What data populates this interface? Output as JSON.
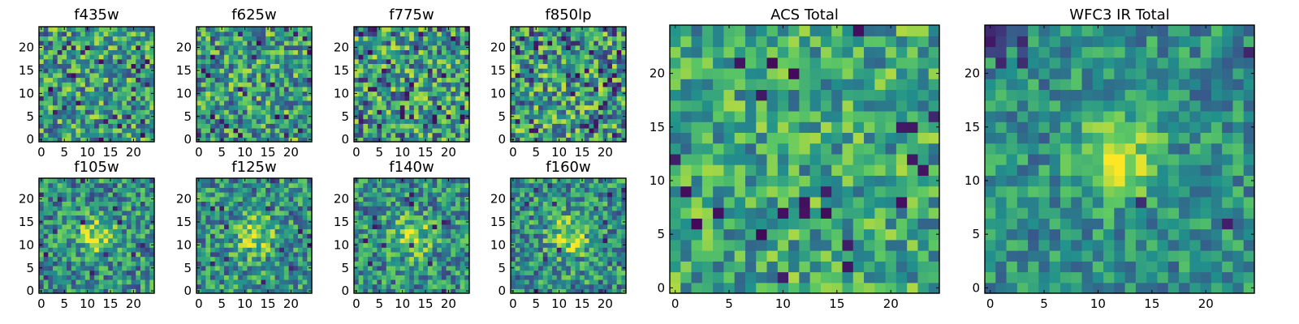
{
  "chart_data": [
    {
      "type": "heatmap",
      "title": "f435w",
      "xticks": [
        "0",
        "5",
        "10",
        "15",
        "20"
      ],
      "yticks": [
        "0",
        "5",
        "10",
        "15",
        "20"
      ],
      "xlim": [
        -0.5,
        24.5
      ],
      "ylim": [
        -0.5,
        24.5
      ],
      "grid_size": [
        25,
        25
      ],
      "colormap": "viridis",
      "pattern": "uniform noise, mostly green-yellow with scattered dark pixels"
    },
    {
      "type": "heatmap",
      "title": "f625w",
      "xticks": [
        "0",
        "5",
        "10",
        "15",
        "20"
      ],
      "yticks": [
        "0",
        "5",
        "10",
        "15",
        "20"
      ],
      "xlim": [
        -0.5,
        24.5
      ],
      "ylim": [
        -0.5,
        24.5
      ],
      "grid_size": [
        25,
        25
      ],
      "colormap": "viridis",
      "pattern": "uniform noise"
    },
    {
      "type": "heatmap",
      "title": "f775w",
      "xticks": [
        "0",
        "5",
        "10",
        "15",
        "20"
      ],
      "yticks": [
        "0",
        "5",
        "10",
        "15",
        "20"
      ],
      "xlim": [
        -0.5,
        24.5
      ],
      "ylim": [
        -0.5,
        24.5
      ],
      "grid_size": [
        25,
        25
      ],
      "colormap": "viridis",
      "pattern": "uniform noise with many dark pixels"
    },
    {
      "type": "heatmap",
      "title": "f850lp",
      "xticks": [
        "0",
        "5",
        "10",
        "15",
        "20"
      ],
      "yticks": [
        "0",
        "5",
        "10",
        "15",
        "20"
      ],
      "xlim": [
        -0.5,
        24.5
      ],
      "ylim": [
        -0.5,
        24.5
      ],
      "grid_size": [
        25,
        25
      ],
      "colormap": "viridis",
      "pattern": "uniform noise with many dark pixels"
    },
    {
      "type": "heatmap",
      "title": "f105w",
      "xticks": [
        "0",
        "5",
        "10",
        "15",
        "20"
      ],
      "yticks": [
        "0",
        "5",
        "10",
        "15",
        "20"
      ],
      "xlim": [
        -0.5,
        24.5
      ],
      "ylim": [
        -0.5,
        24.5
      ],
      "grid_size": [
        25,
        25
      ],
      "colormap": "viridis",
      "pattern": "noise with faint central bright source"
    },
    {
      "type": "heatmap",
      "title": "f125w",
      "xticks": [
        "0",
        "5",
        "10",
        "15",
        "20"
      ],
      "yticks": [
        "0",
        "5",
        "10",
        "15",
        "20"
      ],
      "xlim": [
        -0.5,
        24.5
      ],
      "ylim": [
        -0.5,
        24.5
      ],
      "grid_size": [
        25,
        25
      ],
      "colormap": "viridis",
      "pattern": "noise with central bright source"
    },
    {
      "type": "heatmap",
      "title": "f140w",
      "xticks": [
        "0",
        "5",
        "10",
        "15",
        "20"
      ],
      "yticks": [
        "0",
        "5",
        "10",
        "15",
        "20"
      ],
      "xlim": [
        -0.5,
        24.5
      ],
      "ylim": [
        -0.5,
        24.5
      ],
      "grid_size": [
        25,
        25
      ],
      "colormap": "viridis",
      "pattern": "noise with central bright source"
    },
    {
      "type": "heatmap",
      "title": "f160w",
      "xticks": [
        "0",
        "5",
        "10",
        "15",
        "20"
      ],
      "yticks": [
        "0",
        "5",
        "10",
        "15",
        "20"
      ],
      "xlim": [
        -0.5,
        24.5
      ],
      "ylim": [
        -0.5,
        24.5
      ],
      "grid_size": [
        25,
        25
      ],
      "colormap": "viridis",
      "pattern": "noise with central bright source"
    },
    {
      "type": "heatmap",
      "title": "ACS Total",
      "xticks": [
        "0",
        "5",
        "10",
        "15",
        "20"
      ],
      "yticks": [
        "0",
        "5",
        "10",
        "15",
        "20"
      ],
      "xlim": [
        -0.5,
        24.5
      ],
      "ylim": [
        -0.5,
        24.5
      ],
      "grid_size": [
        25,
        25
      ],
      "colormap": "viridis",
      "pattern": "uniform noise, green dominated"
    },
    {
      "type": "heatmap",
      "title": "WFC3 IR Total",
      "xticks": [
        "0",
        "5",
        "10",
        "15",
        "20"
      ],
      "yticks": [
        "0",
        "5",
        "10",
        "15",
        "20"
      ],
      "xlim": [
        -0.5,
        24.5
      ],
      "ylim": [
        -0.5,
        24.5
      ],
      "grid_size": [
        25,
        25
      ],
      "colormap": "viridis",
      "pattern": "central bright source near (12, 12), dark pixels top-left"
    }
  ],
  "colors": {
    "viridis_stops": [
      "#440154",
      "#3b528b",
      "#21918c",
      "#5ec962",
      "#fde725"
    ]
  }
}
